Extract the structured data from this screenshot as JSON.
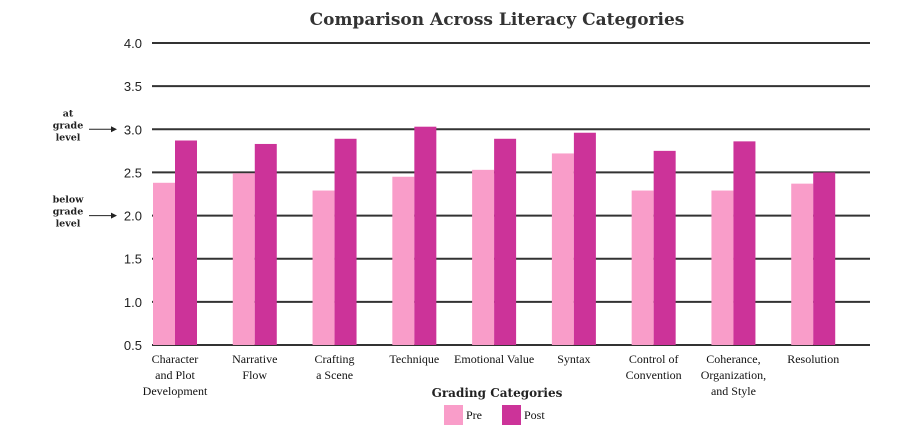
{
  "chart_data": {
    "type": "bar",
    "title": "Comparison Across Literacy Categories",
    "xlabel": "Grading Categories",
    "ylabel": "",
    "ylim": [
      0.5,
      4.0
    ],
    "yticks": [
      "0.5",
      "1.0",
      "1.5",
      "2.0",
      "2.5",
      "3.0",
      "3.5",
      "4.0"
    ],
    "grid": true,
    "legend_position": "bottom-center",
    "categories": [
      [
        "Character",
        "and Plot",
        "Development"
      ],
      [
        "Narrative",
        "Flow"
      ],
      [
        "Crafting",
        "a Scene"
      ],
      [
        "Technique"
      ],
      [
        "Emotional Value"
      ],
      [
        "Syntax"
      ],
      [
        "Control of",
        "Convention"
      ],
      [
        "Coherance,",
        "Organization,",
        "and Style"
      ],
      [
        "Resolution"
      ]
    ],
    "series": [
      {
        "name": "Pre",
        "color": "#f99dc9",
        "values": [
          2.38,
          2.49,
          2.29,
          2.45,
          2.53,
          2.72,
          2.29,
          2.29,
          2.37
        ]
      },
      {
        "name": "Post",
        "color": "#cc3399",
        "values": [
          2.87,
          2.83,
          2.89,
          3.03,
          2.89,
          2.96,
          2.75,
          2.86,
          2.5
        ]
      }
    ],
    "annotations": [
      {
        "lines": [
          "at",
          "grade",
          "level"
        ],
        "y": 3.0
      },
      {
        "lines": [
          "below",
          "grade",
          "level"
        ],
        "y": 2.0
      }
    ]
  }
}
